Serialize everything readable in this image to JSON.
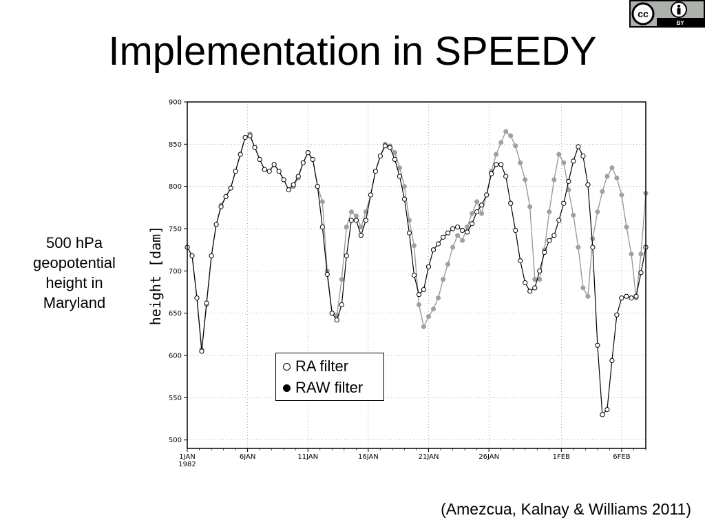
{
  "slide": {
    "title": "Implementation in SPEEDY",
    "side_label_lines": [
      "500 hPa",
      "geopotential",
      "height in",
      "Maryland"
    ],
    "citation": "(Amezcua, Kalnay & Williams 2011)",
    "license_badge": {
      "icon": "cc-by-icon",
      "text_cc": "cc",
      "text_by": "BY"
    }
  },
  "chart_data": {
    "type": "line",
    "title": "",
    "xlabel": "",
    "ylabel": "height [dam]",
    "x_unit": "days since 1 Jan 1982",
    "xlim": [
      0,
      38
    ],
    "ylim": [
      490,
      900
    ],
    "yticks": [
      500,
      550,
      600,
      650,
      700,
      750,
      800,
      850,
      900
    ],
    "xticks": [
      {
        "day": 0,
        "label": "1JAN",
        "sublabel": "1982"
      },
      {
        "day": 5,
        "label": "6JAN"
      },
      {
        "day": 10,
        "label": "11JAN"
      },
      {
        "day": 15,
        "label": "16JAN"
      },
      {
        "day": 20,
        "label": "21JAN"
      },
      {
        "day": 25,
        "label": "26JAN"
      },
      {
        "day": 31,
        "label": "1FEB"
      },
      {
        "day": 36,
        "label": "6FEB"
      }
    ],
    "legend": [
      {
        "series": "RA filter",
        "marker": "open-circle"
      },
      {
        "series": "RAW filter",
        "marker": "filled-circle"
      }
    ],
    "legend_location": "lower-center",
    "series": [
      {
        "name": "RAW filter",
        "color": "#a0a0a0",
        "marker": "filled-circle",
        "points": [
          [
            0,
            728
          ],
          [
            0.4,
            718
          ],
          [
            0.8,
            668
          ],
          [
            1.2,
            607
          ],
          [
            1.6,
            660
          ],
          [
            2,
            718
          ],
          [
            2.4,
            755
          ],
          [
            2.8,
            778
          ],
          [
            3.2,
            788
          ],
          [
            3.6,
            798
          ],
          [
            4,
            818
          ],
          [
            4.4,
            838
          ],
          [
            4.8,
            858
          ],
          [
            5.2,
            862
          ],
          [
            5.6,
            846
          ],
          [
            6,
            832
          ],
          [
            6.4,
            820
          ],
          [
            6.8,
            818
          ],
          [
            7.2,
            826
          ],
          [
            7.6,
            818
          ],
          [
            8,
            808
          ],
          [
            8.4,
            796
          ],
          [
            8.8,
            800
          ],
          [
            9.2,
            810
          ],
          [
            9.6,
            828
          ],
          [
            10,
            840
          ],
          [
            10.4,
            832
          ],
          [
            10.8,
            800
          ],
          [
            11.2,
            782
          ],
          [
            11.6,
            700
          ],
          [
            12,
            650
          ],
          [
            12.4,
            648
          ],
          [
            12.8,
            690
          ],
          [
            13.2,
            752
          ],
          [
            13.6,
            770
          ],
          [
            14,
            765
          ],
          [
            14.4,
            752
          ],
          [
            14.8,
            770
          ],
          [
            15.2,
            790
          ],
          [
            15.6,
            818
          ],
          [
            16,
            836
          ],
          [
            16.4,
            850
          ],
          [
            16.8,
            848
          ],
          [
            17.2,
            840
          ],
          [
            17.6,
            822
          ],
          [
            18,
            800
          ],
          [
            18.4,
            760
          ],
          [
            18.8,
            730
          ],
          [
            19.2,
            660
          ],
          [
            19.6,
            634
          ],
          [
            20,
            646
          ],
          [
            20.4,
            655
          ],
          [
            20.8,
            668
          ],
          [
            21.2,
            690
          ],
          [
            21.6,
            708
          ],
          [
            22,
            728
          ],
          [
            22.4,
            742
          ],
          [
            22.8,
            736
          ],
          [
            23.2,
            752
          ],
          [
            23.6,
            768
          ],
          [
            24,
            782
          ],
          [
            24.4,
            768
          ],
          [
            24.8,
            790
          ],
          [
            25.2,
            818
          ],
          [
            25.6,
            838
          ],
          [
            26,
            852
          ],
          [
            26.4,
            865
          ],
          [
            26.8,
            860
          ],
          [
            27.2,
            848
          ],
          [
            27.6,
            828
          ],
          [
            28,
            808
          ],
          [
            28.4,
            776
          ],
          [
            28.8,
            690
          ],
          [
            29.2,
            690
          ],
          [
            29.6,
            725
          ],
          [
            30,
            770
          ],
          [
            30.4,
            808
          ],
          [
            30.8,
            838
          ],
          [
            31.2,
            828
          ],
          [
            31.6,
            796
          ],
          [
            32,
            766
          ],
          [
            32.4,
            728
          ],
          [
            32.8,
            680
          ],
          [
            33.2,
            670
          ],
          [
            33.6,
            738
          ],
          [
            34,
            770
          ],
          [
            34.4,
            794
          ],
          [
            34.8,
            812
          ],
          [
            35.2,
            822
          ],
          [
            35.6,
            810
          ],
          [
            36,
            790
          ],
          [
            36.4,
            752
          ],
          [
            36.8,
            720
          ],
          [
            37.2,
            668
          ],
          [
            37.6,
            720
          ],
          [
            38,
            792
          ]
        ]
      },
      {
        "name": "RA filter",
        "color": "#000000",
        "marker": "open-circle",
        "points": [
          [
            0,
            728
          ],
          [
            0.4,
            718
          ],
          [
            0.8,
            668
          ],
          [
            1.2,
            605
          ],
          [
            1.6,
            662
          ],
          [
            2,
            718
          ],
          [
            2.4,
            755
          ],
          [
            2.8,
            776
          ],
          [
            3.2,
            788
          ],
          [
            3.6,
            798
          ],
          [
            4,
            818
          ],
          [
            4.4,
            838
          ],
          [
            4.8,
            858
          ],
          [
            5.2,
            860
          ],
          [
            5.6,
            846
          ],
          [
            6,
            832
          ],
          [
            6.4,
            820
          ],
          [
            6.8,
            818
          ],
          [
            7.2,
            826
          ],
          [
            7.6,
            818
          ],
          [
            8,
            808
          ],
          [
            8.4,
            796
          ],
          [
            8.8,
            802
          ],
          [
            9.2,
            812
          ],
          [
            9.6,
            828
          ],
          [
            10,
            840
          ],
          [
            10.4,
            832
          ],
          [
            10.8,
            800
          ],
          [
            11.2,
            752
          ],
          [
            11.6,
            696
          ],
          [
            12,
            650
          ],
          [
            12.4,
            642
          ],
          [
            12.8,
            660
          ],
          [
            13.2,
            718
          ],
          [
            13.6,
            760
          ],
          [
            14,
            760
          ],
          [
            14.4,
            742
          ],
          [
            14.8,
            760
          ],
          [
            15.2,
            790
          ],
          [
            15.6,
            818
          ],
          [
            16,
            836
          ],
          [
            16.4,
            848
          ],
          [
            16.8,
            846
          ],
          [
            17.2,
            832
          ],
          [
            17.6,
            812
          ],
          [
            18,
            785
          ],
          [
            18.4,
            745
          ],
          [
            18.8,
            695
          ],
          [
            19.2,
            672
          ],
          [
            19.6,
            678
          ],
          [
            20,
            705
          ],
          [
            20.4,
            725
          ],
          [
            20.8,
            732
          ],
          [
            21.2,
            740
          ],
          [
            21.6,
            745
          ],
          [
            22,
            750
          ],
          [
            22.4,
            752
          ],
          [
            22.8,
            748
          ],
          [
            23.2,
            746
          ],
          [
            23.6,
            756
          ],
          [
            24,
            770
          ],
          [
            24.4,
            778
          ],
          [
            24.8,
            790
          ],
          [
            25.2,
            815
          ],
          [
            25.6,
            826
          ],
          [
            26,
            826
          ],
          [
            26.4,
            812
          ],
          [
            26.8,
            780
          ],
          [
            27.2,
            748
          ],
          [
            27.6,
            712
          ],
          [
            28,
            686
          ],
          [
            28.4,
            676
          ],
          [
            28.8,
            680
          ],
          [
            29.2,
            700
          ],
          [
            29.6,
            722
          ],
          [
            30,
            736
          ],
          [
            30.4,
            742
          ],
          [
            30.8,
            760
          ],
          [
            31.2,
            780
          ],
          [
            31.6,
            806
          ],
          [
            32,
            830
          ],
          [
            32.4,
            847
          ],
          [
            32.8,
            836
          ],
          [
            33.2,
            802
          ],
          [
            33.6,
            728
          ],
          [
            34,
            612
          ],
          [
            34.4,
            530
          ],
          [
            34.8,
            536
          ],
          [
            35.2,
            594
          ],
          [
            35.6,
            648
          ],
          [
            36,
            668
          ],
          [
            36.4,
            670
          ],
          [
            36.8,
            668
          ],
          [
            37.2,
            670
          ],
          [
            37.6,
            698
          ],
          [
            38,
            728
          ]
        ]
      }
    ]
  }
}
